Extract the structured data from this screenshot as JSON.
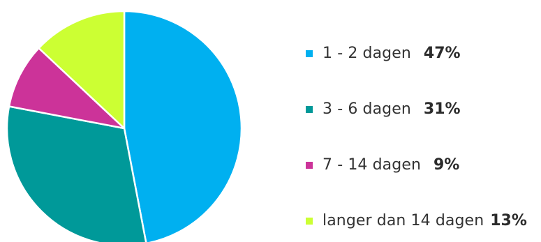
{
  "chart_data": {
    "type": "pie",
    "title": "",
    "categories": [
      "1 - 2 dagen",
      "3 - 6 dagen",
      "7 - 14 dagen",
      "langer dan 14 dagen"
    ],
    "values": [
      47,
      31,
      9,
      13
    ],
    "value_labels": [
      "47%",
      "31%",
      "9%",
      "13%"
    ],
    "colors": [
      "#00b0f0",
      "#009999",
      "#cc3399",
      "#ccff33"
    ],
    "legend_position": "right"
  }
}
